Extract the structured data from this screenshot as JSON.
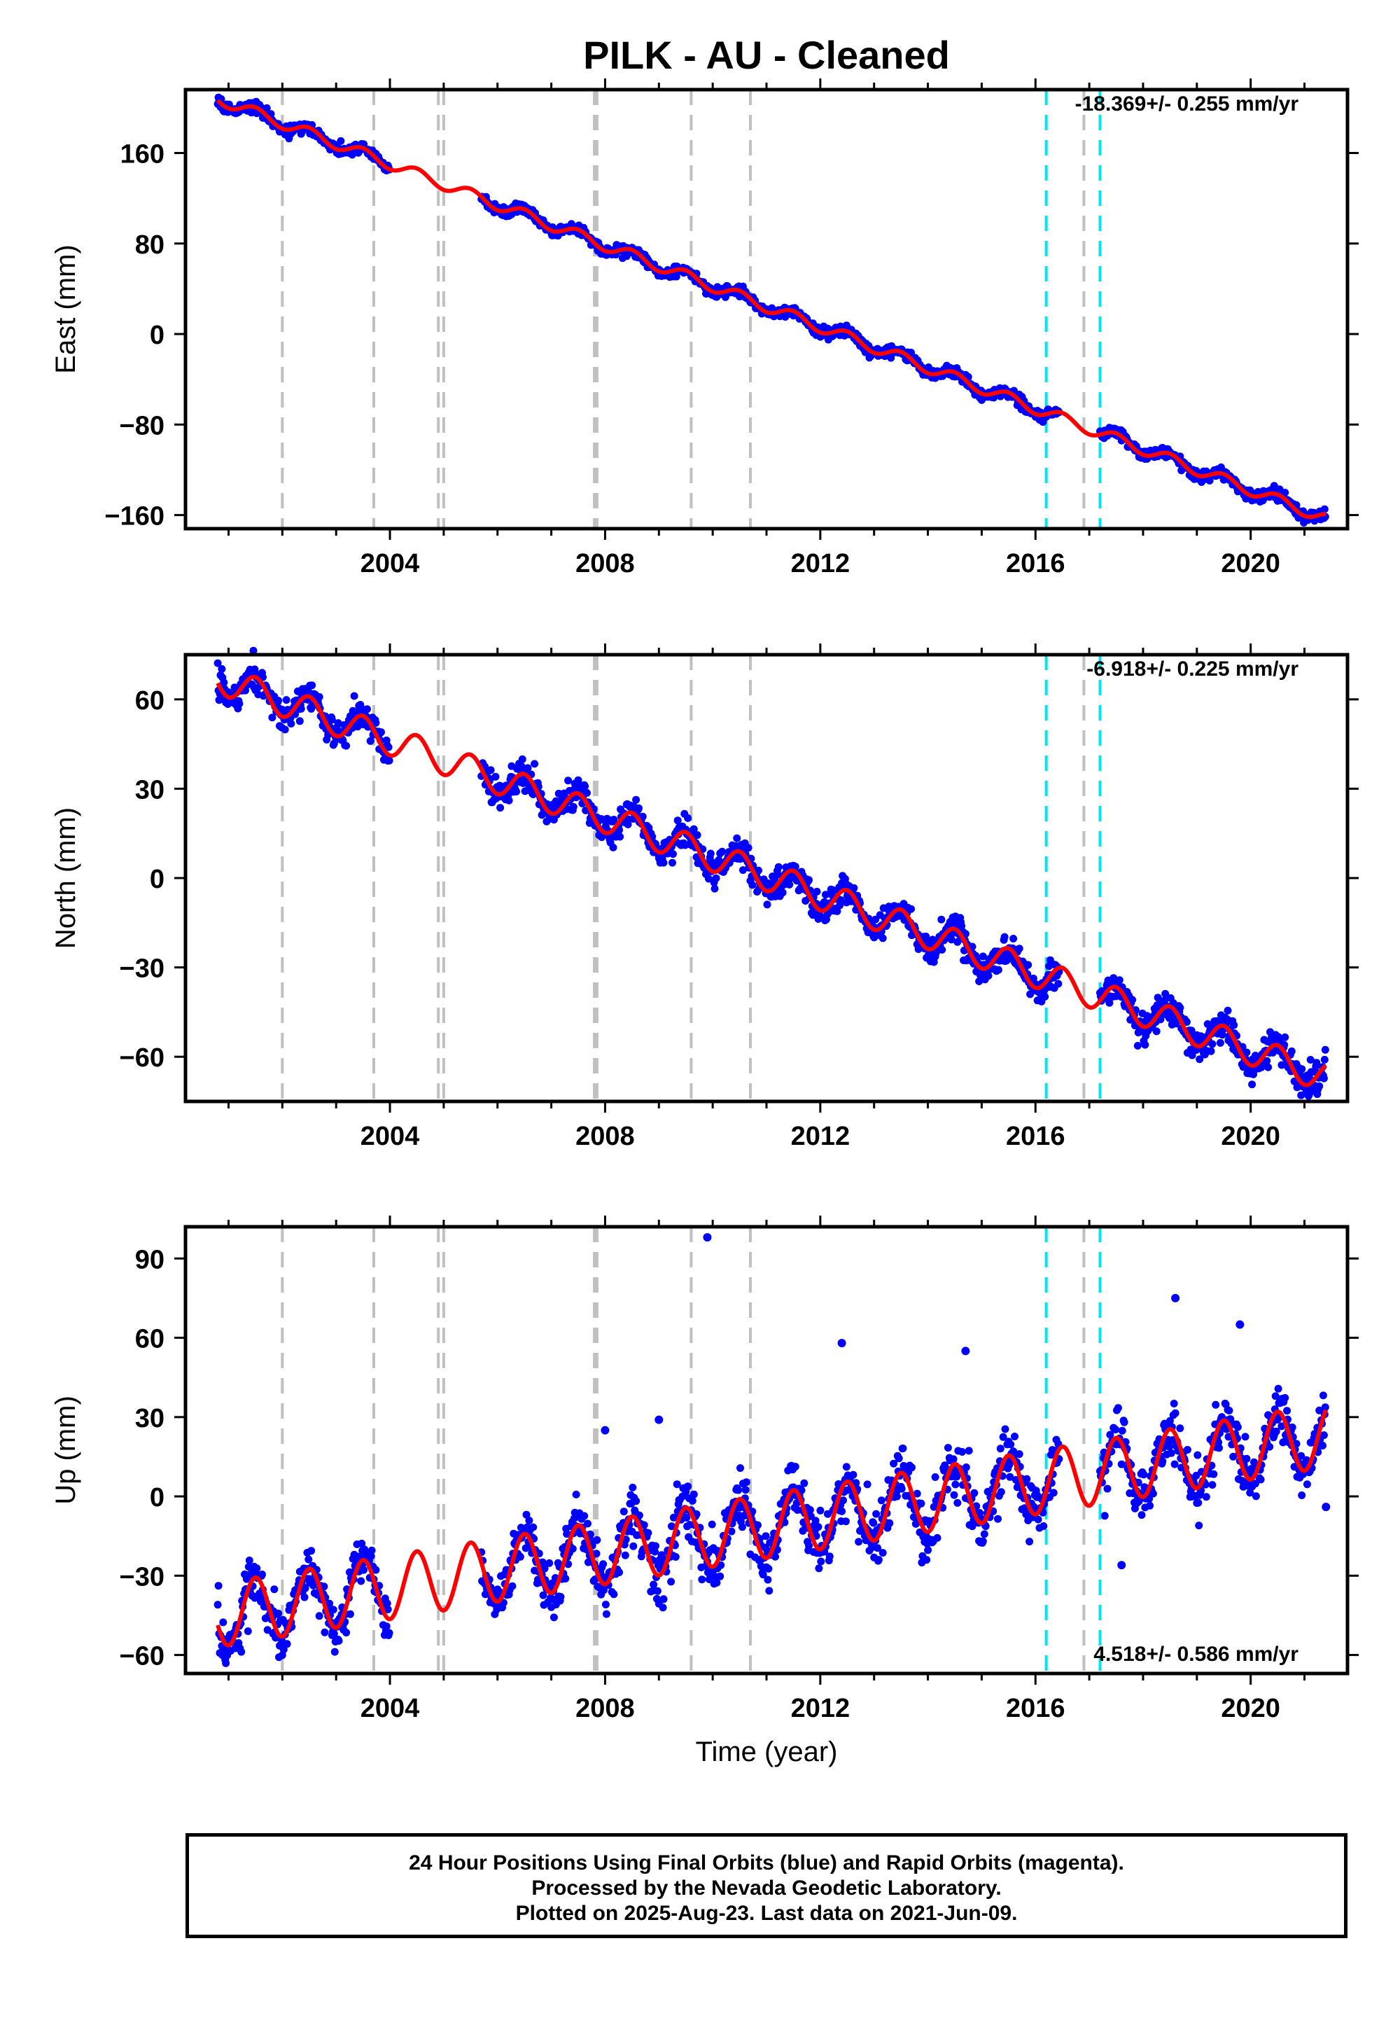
{
  "title": "PILK  - AU - Cleaned",
  "footer": {
    "line1": "24 Hour Positions Using Final Orbits (blue) and Rapid Orbits (magenta).",
    "line2": "Processed by the Nevada Geodetic Laboratory.",
    "line3": "Plotted on 2025-Aug-23. Last data on 2021-Jun-09."
  },
  "colors": {
    "points": "#0000ff",
    "model": "#ff0000",
    "grey_lines": "#c0c0c0",
    "cyan_lines": "#00e5ee"
  },
  "chart_data": [
    {
      "type": "scatter",
      "ylabel": "East (mm)",
      "xlabel": "",
      "rate_label": "-18.369+/- 0.255 mm/yr",
      "xlim": [
        2000.2,
        2021.8
      ],
      "ylim": [
        -172,
        216
      ],
      "xticks": [
        2004,
        2008,
        2012,
        2016,
        2020
      ],
      "yticks": [
        -160,
        -80,
        0,
        80,
        160
      ],
      "grey_lines": [
        2002.0,
        2003.7,
        2004.9,
        2005.0,
        2007.8,
        2007.85,
        2009.6,
        2010.7,
        2016.9
      ],
      "cyan_lines": [
        2016.2,
        2017.2
      ],
      "model": {
        "start_year": 2000.8,
        "start_value": 208,
        "end_year": 2021.4,
        "end_value": -163,
        "annual_amp": 5,
        "gap": [
          2004.0,
          2005.7
        ],
        "scatter": 2.5
      },
      "series": [
        {
          "name": "Final Orbits",
          "color": "#0000ff"
        }
      ]
    },
    {
      "type": "scatter",
      "ylabel": "North (mm)",
      "xlabel": "",
      "rate_label": "-6.918+/- 0.225 mm/yr",
      "xlim": [
        2000.2,
        2021.8
      ],
      "ylim": [
        -75,
        75
      ],
      "xticks": [
        2004,
        2008,
        2012,
        2016,
        2020
      ],
      "yticks": [
        -60,
        -30,
        0,
        30,
        60
      ],
      "grey_lines": [
        2002.0,
        2003.7,
        2004.9,
        2005.0,
        2007.8,
        2007.85,
        2009.6,
        2010.7,
        2016.9
      ],
      "cyan_lines": [
        2016.2,
        2017.2
      ],
      "model": {
        "start_year": 2000.8,
        "start_value": 67,
        "end_year": 2021.4,
        "end_value": -67,
        "annual_amp": 5,
        "gap": [
          2004.0,
          2005.7
        ],
        "scatter": 2.5
      },
      "series": [
        {
          "name": "Final Orbits",
          "color": "#0000ff"
        }
      ]
    },
    {
      "type": "scatter",
      "ylabel": "Up (mm)",
      "xlabel": "Time (year)",
      "rate_label": "4.518+/- 0.586 mm/yr",
      "xlim": [
        2000.2,
        2021.8
      ],
      "ylim": [
        -67,
        102
      ],
      "xticks": [
        2004,
        2008,
        2012,
        2016,
        2020
      ],
      "yticks": [
        -60,
        -30,
        0,
        30,
        60,
        90
      ],
      "grey_lines": [
        2002.0,
        2003.7,
        2004.9,
        2005.0,
        2007.8,
        2007.85,
        2009.6,
        2010.7,
        2016.9
      ],
      "cyan_lines": [
        2016.2,
        2017.2
      ],
      "model": {
        "start_year": 2000.8,
        "start_value": -45,
        "end_year": 2021.4,
        "end_value": 23,
        "annual_amp": 12,
        "gap": [
          2004.0,
          2005.7
        ],
        "scatter": 5
      },
      "outliers": [
        [
          2009.9,
          98
        ],
        [
          2012.4,
          58
        ],
        [
          2014.7,
          55
        ],
        [
          2018.6,
          75
        ],
        [
          2019.8,
          65
        ],
        [
          2021.4,
          -4
        ],
        [
          2017.6,
          -26
        ],
        [
          2008.0,
          25
        ],
        [
          2009.0,
          29
        ]
      ],
      "series": [
        {
          "name": "Final Orbits",
          "color": "#0000ff"
        }
      ]
    }
  ]
}
